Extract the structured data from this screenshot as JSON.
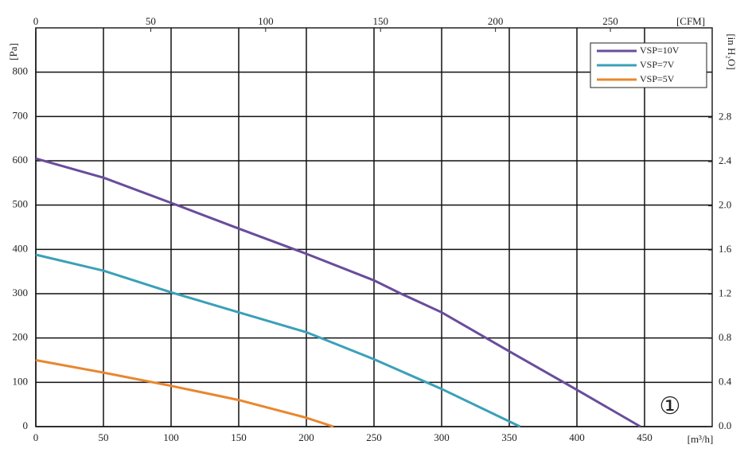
{
  "chart_data": {
    "type": "line",
    "x_label": "[m³/h]",
    "y_label": "[Pa]",
    "x2_label": "[CFM]",
    "y2_label": "[in H₂O]",
    "annotation": "①",
    "xlim": [
      0,
      500
    ],
    "xticks": [
      0,
      50,
      100,
      150,
      200,
      250,
      300,
      350,
      400,
      450
    ],
    "ylim": [
      0,
      900
    ],
    "yticks": [
      0,
      100,
      200,
      300,
      400,
      500,
      600,
      700,
      800
    ],
    "x2lim": [
      0,
      294.3
    ],
    "x2ticks": [
      0,
      50,
      100,
      150,
      200,
      250
    ],
    "y2lim": [
      0,
      3.613
    ],
    "y2ticks": [
      {
        "value": 0,
        "label": "0.0"
      },
      0.4,
      0.8,
      1.2,
      1.6,
      {
        "value": 2,
        "label": "2.0"
      },
      2.4,
      2.8
    ],
    "grid": true,
    "legend": "top-right",
    "series": [
      {
        "name": "VSP=10V",
        "color": "#6a4c9c",
        "x": [
          0,
          50,
          100,
          150,
          200,
          250,
          270,
          300,
          350,
          400,
          447
        ],
        "values": [
          605,
          562,
          505,
          447,
          390,
          330,
          300,
          258,
          170,
          83,
          0
        ]
      },
      {
        "name": "VSP=7V",
        "color": "#3aa0b8",
        "x": [
          0,
          50,
          100,
          150,
          200,
          250,
          300,
          358
        ],
        "values": [
          388,
          352,
          303,
          258,
          213,
          152,
          85,
          0
        ]
      },
      {
        "name": "VSP=5V",
        "color": "#e8872e",
        "x": [
          0,
          50,
          100,
          150,
          200,
          220
        ],
        "values": [
          150,
          122,
          92,
          60,
          20,
          0
        ]
      }
    ]
  }
}
